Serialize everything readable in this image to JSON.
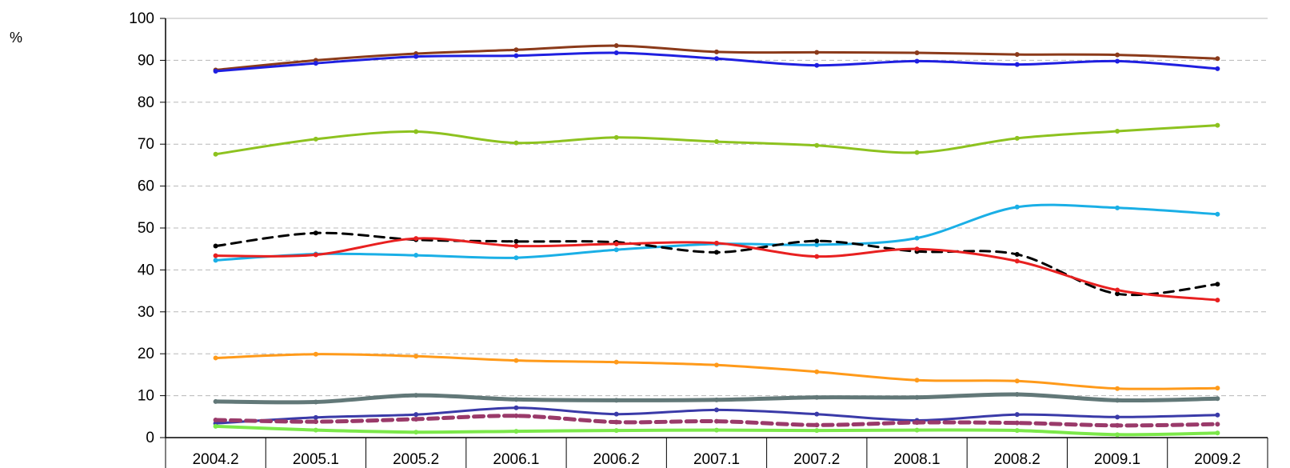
{
  "chart_data": {
    "type": "line",
    "ylabel": "%",
    "ylim": [
      0,
      100
    ],
    "yticks": [
      "0",
      "10",
      "20",
      "30",
      "40",
      "50",
      "60",
      "70",
      "80",
      "90",
      "100"
    ],
    "categories": [
      "2004.2",
      "2005.1",
      "2005.2",
      "2006.1",
      "2006.2",
      "2007.1",
      "2007.2",
      "2008.1",
      "2008.2",
      "2009.1",
      "2009.2"
    ],
    "grid": "horizontal-dashed",
    "series": [
      {
        "color": "#8B3A1A",
        "dash": "",
        "width": 3,
        "values": [
          87.7,
          90.0,
          91.6,
          92.5,
          93.5,
          92.0,
          91.9,
          91.8,
          91.4,
          91.3,
          90.4
        ]
      },
      {
        "color": "#1F1FE0",
        "dash": "",
        "width": 3,
        "values": [
          87.4,
          89.3,
          90.9,
          91.1,
          91.8,
          90.4,
          88.8,
          89.8,
          89.0,
          89.8,
          88.0
        ]
      },
      {
        "color": "#8DC21F",
        "dash": "",
        "width": 3,
        "values": [
          67.6,
          71.2,
          73.0,
          70.3,
          71.6,
          70.6,
          69.7,
          68.0,
          71.4,
          73.1,
          74.5
        ]
      },
      {
        "color": "#1AAFE6",
        "dash": "",
        "width": 3,
        "values": [
          42.3,
          43.8,
          43.5,
          42.9,
          44.8,
          46.2,
          46.0,
          47.6,
          55.0,
          54.8,
          53.3
        ]
      },
      {
        "color": "#000000",
        "dash": "12,8",
        "width": 3,
        "values": [
          45.7,
          48.8,
          47.2,
          46.8,
          46.6,
          44.2,
          46.9,
          44.4,
          43.7,
          34.3,
          36.6
        ]
      },
      {
        "color": "#E82020",
        "dash": "",
        "width": 3,
        "values": [
          43.4,
          43.6,
          47.5,
          45.7,
          46.2,
          46.4,
          43.2,
          45.0,
          42.1,
          35.2,
          32.8
        ]
      },
      {
        "color": "#FF9A1A",
        "dash": "",
        "width": 3,
        "values": [
          19.0,
          19.9,
          19.4,
          18.4,
          18.0,
          17.3,
          15.7,
          13.7,
          13.5,
          11.7,
          11.8
        ]
      },
      {
        "color": "#627878",
        "dash": "",
        "width": 5,
        "values": [
          8.6,
          8.5,
          10.1,
          9.1,
          8.9,
          9.0,
          9.6,
          9.6,
          10.3,
          8.9,
          9.3
        ]
      },
      {
        "color": "#3A3AA8",
        "dash": "",
        "width": 3,
        "values": [
          3.4,
          4.8,
          5.5,
          7.1,
          5.6,
          6.6,
          5.6,
          4.1,
          5.5,
          4.9,
          5.4
        ]
      },
      {
        "color": "#9A3A6A",
        "dash": "12,7",
        "width": 5,
        "values": [
          4.2,
          3.8,
          4.4,
          5.2,
          3.7,
          3.9,
          3.0,
          3.6,
          3.5,
          2.9,
          3.2
        ]
      },
      {
        "color": "#7CE84A",
        "dash": "",
        "width": 4,
        "values": [
          2.7,
          1.8,
          1.3,
          1.5,
          1.7,
          1.8,
          1.7,
          1.8,
          1.7,
          0.7,
          1.1
        ]
      }
    ]
  }
}
